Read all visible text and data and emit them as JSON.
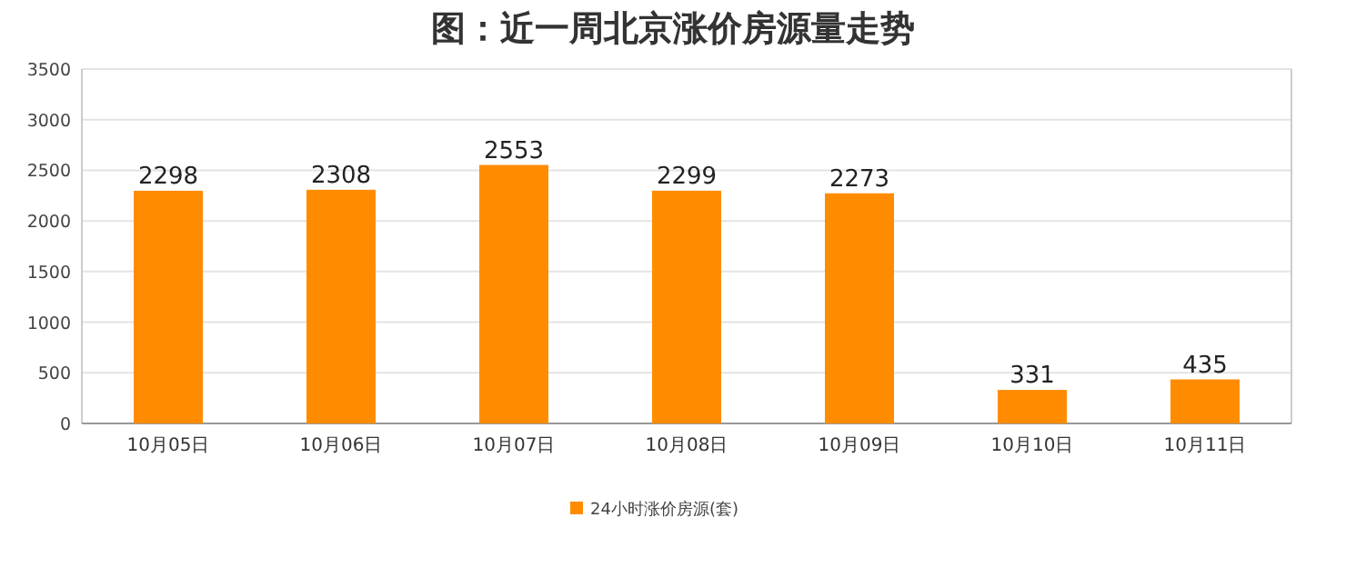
{
  "chart_data": {
    "type": "bar",
    "title": "图：近一周北京涨价房源量走势",
    "categories": [
      "10月05日",
      "10月06日",
      "10月07日",
      "10月08日",
      "10月09日",
      "10月10日",
      "10月11日"
    ],
    "series": [
      {
        "name": "24小时涨价房源(套)",
        "color": "#ff8c00",
        "values": [
          2298,
          2308,
          2553,
          2299,
          2273,
          331,
          435
        ]
      }
    ],
    "ylim": [
      0,
      3500
    ],
    "yticks": [
      0,
      500,
      1000,
      1500,
      2000,
      2500,
      3000,
      3500
    ],
    "grid": "y",
    "legend": "bottom",
    "data_labels": true
  }
}
